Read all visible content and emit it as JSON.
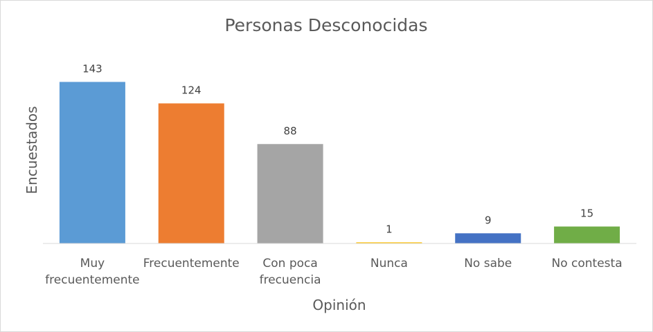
{
  "chart_data": {
    "type": "bar",
    "title": "Personas Desconocidas",
    "xlabel": "Opinión",
    "ylabel": "Encuestados",
    "categories": [
      [
        "Muy",
        "frecuentemente"
      ],
      [
        "Frecuentemente"
      ],
      [
        "Con poca",
        "frecuencia"
      ],
      [
        "Nunca"
      ],
      [
        "No sabe"
      ],
      [
        "No contesta"
      ]
    ],
    "values": [
      143,
      124,
      88,
      1,
      9,
      15
    ],
    "bar_colors": [
      "#5b9bd5",
      "#ed7d31",
      "#a5a5a5",
      "#ffc000",
      "#4472c4",
      "#70ad47"
    ],
    "ylim": [
      0,
      150
    ],
    "grid": false,
    "legend": "none",
    "data_labels": true
  }
}
